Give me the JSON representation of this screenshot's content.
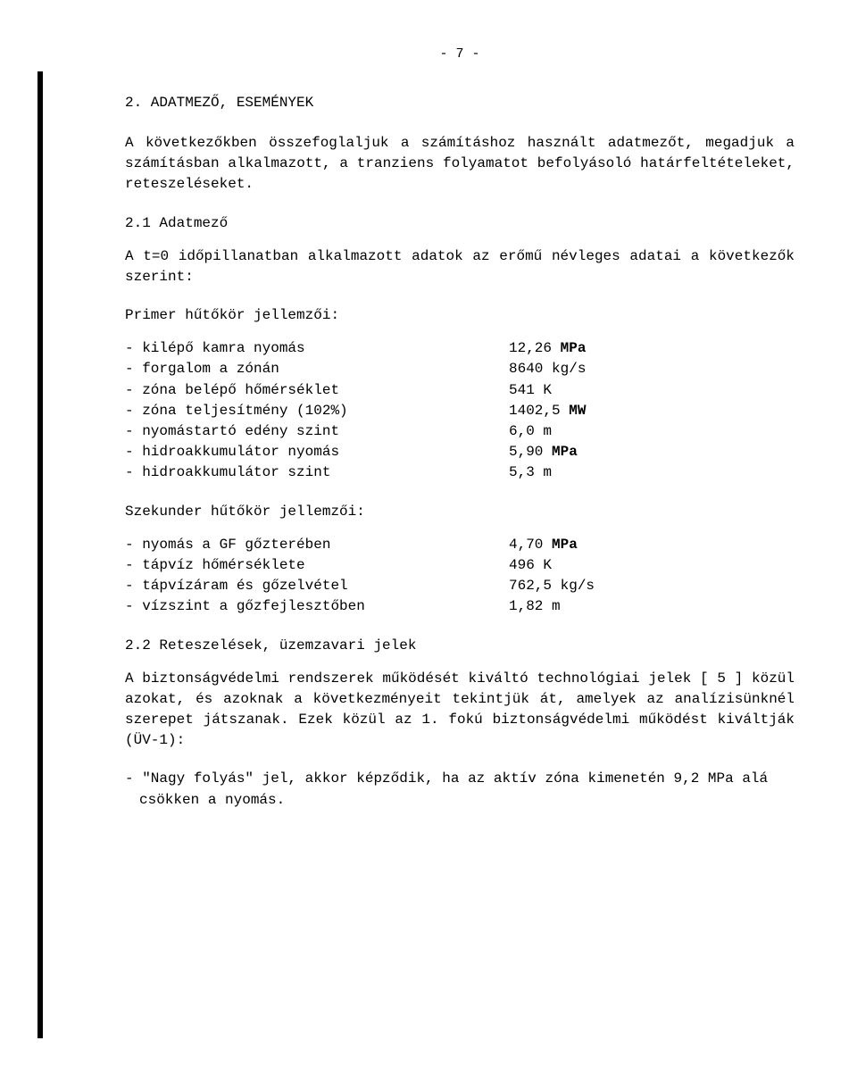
{
  "page_number": "- 7 -",
  "section_title": "2. ADATMEZŐ, ESEMÉNYEK",
  "intro_para": "A következőkben összefoglaljuk a számításhoz használt adatmezőt, megadjuk a számításban alkalmazott, a tranziens folyamatot befolyásoló határfeltételeket, reteszeléseket.",
  "sub21_title": "2.1  Adatmező",
  "sub21_para": "A t=0 időpillanatban alkalmazott adatok az erőmű névleges adatai a következők szerint:",
  "primer_title": "Primer hűtőkör jellemzői:",
  "primer": [
    {
      "label": "- kilépő kamra nyomás",
      "value": "12,26 MPa",
      "bold": "MPa"
    },
    {
      "label": "- forgalom a zónán",
      "value": "8640 kg/s",
      "bold": ""
    },
    {
      "label": "- zóna belépő hőmérséklet",
      "value": "541 K",
      "bold": ""
    },
    {
      "label": "- zóna teljesítmény (102%)",
      "value": "1402,5 MW",
      "bold": "MW"
    },
    {
      "label": "- nyomástartó edény szint",
      "value": "6,0 m",
      "bold": ""
    },
    {
      "label": "- hidroakkumulátor nyomás",
      "value": "5,90 MPa",
      "bold": "MPa"
    },
    {
      "label": "- hidroakkumulátor szint",
      "value": "5,3 m",
      "bold": ""
    }
  ],
  "szek_title": "Szekunder hűtőkör jellemzői:",
  "szek": [
    {
      "label": "- nyomás a GF gőzterében",
      "value": "4,70 MPa",
      "bold": "MPa"
    },
    {
      "label": "- tápvíz hőmérséklete",
      "value": "496 K",
      "bold": ""
    },
    {
      "label": "- tápvízáram és gőzelvétel",
      "value": "762,5 kg/s",
      "bold": ""
    },
    {
      "label": "- vízszint a gőzfejlesztőben",
      "value": "1,82 m",
      "bold": ""
    }
  ],
  "sub22_title": "2.2  Reteszelések, üzemzavari jelek",
  "sub22_para": "A biztonságvédelmi rendszerek működését kiváltó technológiai jelek [ 5 ] közül azokat, és azoknak a következményeit tekintjük át, amelyek az analízisünknél szerepet játszanak. Ezek közül az 1. fokú biztonságvédelmi működést kiváltják (ÜV-1):",
  "bullet1": "- \"Nagy folyás\" jel, akkor képződik, ha az aktív zóna kimenetén 9,2 MPa alá csökken a nyomás."
}
